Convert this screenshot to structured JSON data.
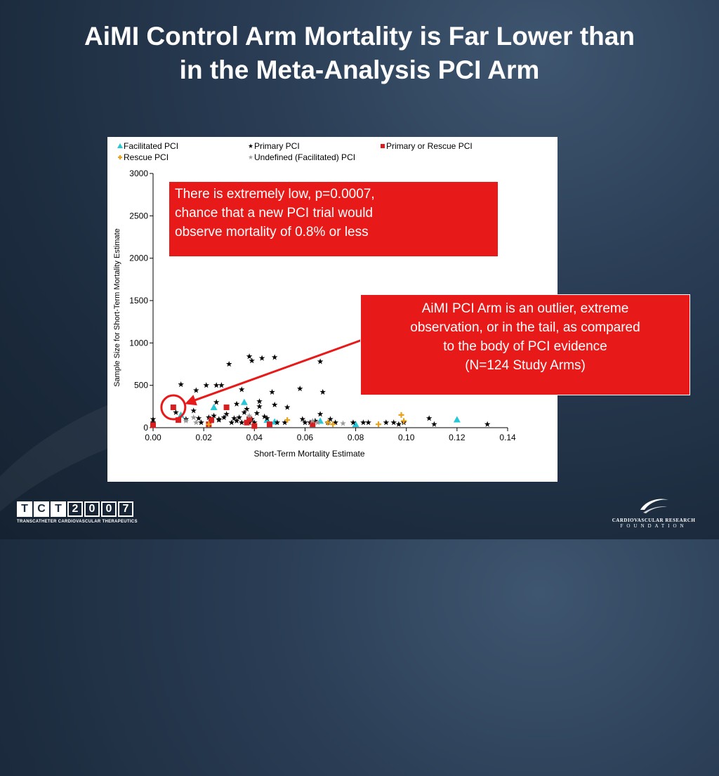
{
  "slide": {
    "title_lines": [
      "AiMI Control Arm Mortality is Far Lower than",
      "in the Meta-Analysis PCI Arm"
    ]
  },
  "callouts": {
    "top": [
      "There is extremely low, p=0.0007,",
      "chance that a new PCI trial would",
      "observe mortality of 0.8% or less"
    ],
    "right": [
      "AiMI PCI Arm is an outlier, extreme",
      "observation, or in the tail, as compared",
      "to the body of PCI evidence",
      "(N=124 Study Arms)"
    ]
  },
  "logos": {
    "tct_chars": [
      "T",
      "C",
      "T",
      "2",
      "0",
      "0",
      "7"
    ],
    "tct_subtitle": "TRANSCATHETER CARDIOVASCULAR THERAPEUTICS",
    "crf_line1": "CARDIOVASCULAR RESEARCH",
    "crf_line2": "FOUNDATION"
  },
  "colors": {
    "facilitated": "#25c8d8",
    "primary": "#000000",
    "primary_or_rescue": "#d42020",
    "rescue": "#e8a21c",
    "undefined": "#9a9a9a",
    "callout_bg": "#e81919",
    "highlight": "#e81919"
  },
  "chart_data": {
    "type": "scatter",
    "title": "",
    "xlabel": "Short-Term Mortality Estimate",
    "ylabel": "Sample Size for Short-Term Mortality Estimate",
    "xlim": [
      0,
      0.14
    ],
    "ylim": [
      0,
      3000
    ],
    "x_ticks": [
      0,
      0.02,
      0.04,
      0.06,
      0.08,
      0.1,
      0.12,
      0.14
    ],
    "x_tick_labels": [
      "0.00",
      "0.02",
      "0.04",
      "0.06",
      "0.08",
      "0.10",
      "0.12",
      "0.14"
    ],
    "y_ticks": [
      0,
      500,
      1000,
      1500,
      2000,
      2500,
      3000
    ],
    "y_tick_labels": [
      "0",
      "500",
      "1000",
      "1500",
      "2000",
      "2500",
      "3000"
    ],
    "grid": false,
    "legend_position": "top",
    "highlight": {
      "x": 0.008,
      "y": 240
    },
    "arrow": {
      "from": [
        0.082,
        1030
      ],
      "to": [
        0.0125,
        280
      ]
    },
    "series": [
      {
        "name": "Facilitated PCI",
        "marker": "triangle",
        "color": "#25c8d8",
        "points": [
          [
            0.024,
            240
          ],
          [
            0.036,
            300
          ],
          [
            0.048,
            70
          ],
          [
            0.066,
            80
          ],
          [
            0.08,
            40
          ],
          [
            0.12,
            95
          ],
          [
            0.011,
            150
          ],
          [
            0.045,
            90
          ]
        ]
      },
      {
        "name": "Primary PCI",
        "marker": "star",
        "color": "#000000",
        "points": [
          [
            0.0,
            100
          ],
          [
            0.0,
            60
          ],
          [
            0.009,
            180
          ],
          [
            0.011,
            510
          ],
          [
            0.013,
            100
          ],
          [
            0.016,
            200
          ],
          [
            0.017,
            440
          ],
          [
            0.018,
            110
          ],
          [
            0.019,
            60
          ],
          [
            0.021,
            500
          ],
          [
            0.022,
            120
          ],
          [
            0.023,
            80
          ],
          [
            0.024,
            140
          ],
          [
            0.025,
            300
          ],
          [
            0.025,
            500
          ],
          [
            0.026,
            90
          ],
          [
            0.027,
            500
          ],
          [
            0.028,
            120
          ],
          [
            0.029,
            160
          ],
          [
            0.03,
            750
          ],
          [
            0.031,
            60
          ],
          [
            0.032,
            110
          ],
          [
            0.033,
            280
          ],
          [
            0.034,
            120
          ],
          [
            0.035,
            60
          ],
          [
            0.035,
            450
          ],
          [
            0.036,
            180
          ],
          [
            0.037,
            220
          ],
          [
            0.038,
            840
          ],
          [
            0.039,
            790
          ],
          [
            0.039,
            100
          ],
          [
            0.04,
            60
          ],
          [
            0.041,
            170
          ],
          [
            0.042,
            310
          ],
          [
            0.042,
            250
          ],
          [
            0.043,
            820
          ],
          [
            0.044,
            130
          ],
          [
            0.045,
            110
          ],
          [
            0.047,
            420
          ],
          [
            0.048,
            830
          ],
          [
            0.048,
            270
          ],
          [
            0.049,
            60
          ],
          [
            0.052,
            60
          ],
          [
            0.053,
            240
          ],
          [
            0.058,
            460
          ],
          [
            0.059,
            100
          ],
          [
            0.062,
            60
          ],
          [
            0.064,
            80
          ],
          [
            0.066,
            780
          ],
          [
            0.066,
            160
          ],
          [
            0.067,
            420
          ],
          [
            0.069,
            60
          ],
          [
            0.07,
            100
          ],
          [
            0.072,
            60
          ],
          [
            0.079,
            60
          ],
          [
            0.083,
            60
          ],
          [
            0.085,
            60
          ],
          [
            0.092,
            60
          ],
          [
            0.095,
            60
          ],
          [
            0.097,
            40
          ],
          [
            0.099,
            60
          ],
          [
            0.109,
            110
          ],
          [
            0.111,
            40
          ],
          [
            0.132,
            40
          ],
          [
            0.026,
            100
          ],
          [
            0.033,
            80
          ],
          [
            0.038,
            60
          ],
          [
            0.06,
            60
          ]
        ]
      },
      {
        "name": "Primary or Rescue PCI",
        "marker": "square",
        "color": "#d42020",
        "points": [
          [
            0.0,
            30
          ],
          [
            0.008,
            240
          ],
          [
            0.01,
            90
          ],
          [
            0.022,
            40
          ],
          [
            0.023,
            90
          ],
          [
            0.029,
            240
          ],
          [
            0.037,
            60
          ],
          [
            0.038,
            100
          ],
          [
            0.04,
            20
          ],
          [
            0.046,
            40
          ],
          [
            0.063,
            40
          ]
        ]
      },
      {
        "name": "Rescue PCI",
        "marker": "plus",
        "color": "#e8a21c",
        "points": [
          [
            0.022,
            40
          ],
          [
            0.053,
            90
          ],
          [
            0.069,
            60
          ],
          [
            0.071,
            40
          ],
          [
            0.089,
            40
          ],
          [
            0.098,
            150
          ],
          [
            0.099,
            80
          ]
        ]
      },
      {
        "name": "Undefined (Facilitated) PCI",
        "marker": "star",
        "color": "#9a9a9a",
        "points": [
          [
            0.013,
            80
          ],
          [
            0.016,
            120
          ],
          [
            0.017,
            60
          ],
          [
            0.038,
            140
          ],
          [
            0.063,
            80
          ],
          [
            0.065,
            60
          ],
          [
            0.075,
            50
          ]
        ]
      }
    ]
  }
}
